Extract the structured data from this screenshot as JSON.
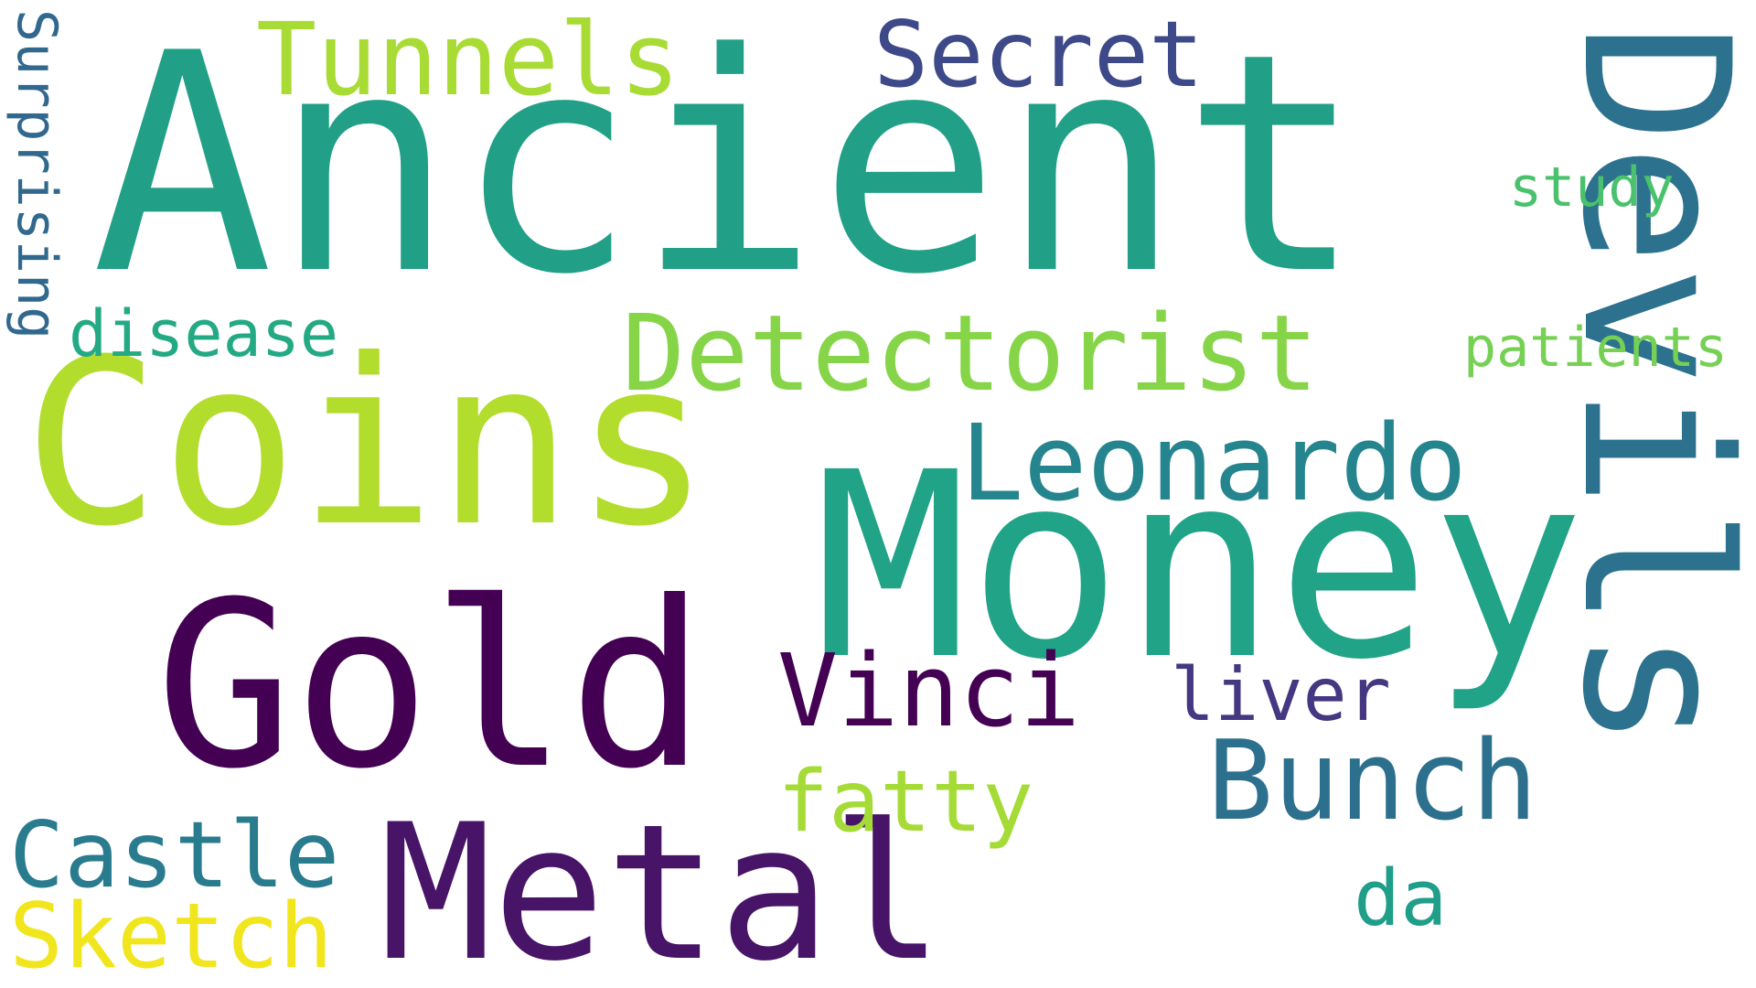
{
  "word_cloud": {
    "words": [
      {
        "text": "Ancient",
        "color": "#21a087"
      },
      {
        "text": "Coins",
        "color": "#b2dd2d"
      },
      {
        "text": "Gold",
        "color": "#440154"
      },
      {
        "text": "Metal",
        "color": "#481467"
      },
      {
        "text": "Money",
        "color": "#20a386"
      },
      {
        "text": "Devils",
        "color": "#2c728e"
      },
      {
        "text": "Detectorist",
        "color": "#86d549"
      },
      {
        "text": "Tunnels",
        "color": "#a8db34"
      },
      {
        "text": "Secret",
        "color": "#3e4989"
      },
      {
        "text": "Leonardo",
        "color": "#25858e"
      },
      {
        "text": "Vinci",
        "color": "#440154"
      },
      {
        "text": "Bunch",
        "color": "#2d708e"
      },
      {
        "text": "Castle",
        "color": "#297b8e"
      },
      {
        "text": "Sketch",
        "color": "#f1e51d"
      },
      {
        "text": "fatty",
        "color": "#a5db36"
      },
      {
        "text": "liver",
        "color": "#453781"
      },
      {
        "text": "da",
        "color": "#1f9e89"
      },
      {
        "text": "disease",
        "color": "#23a983"
      },
      {
        "text": "patients",
        "color": "#75d054"
      },
      {
        "text": "study",
        "color": "#4ac16d"
      },
      {
        "text": "Surprising",
        "color": "#31688e"
      }
    ]
  }
}
